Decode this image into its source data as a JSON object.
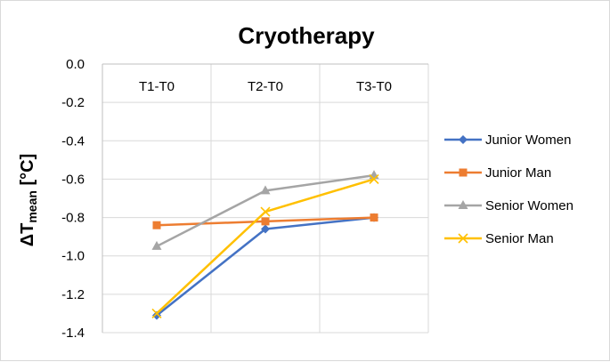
{
  "chart_data": {
    "type": "line",
    "title": "Cryotherapy",
    "ylabel": {
      "prefix": "ΔT",
      "sub": "mean",
      "suffix": " [°C]"
    },
    "xlabel": "",
    "categories": [
      "T1-T0",
      "T2-T0",
      "T3-T0"
    ],
    "ylim": [
      -1.4,
      0.0
    ],
    "yticks": [
      0.0,
      -0.2,
      -0.4,
      -0.6,
      -0.8,
      -1.0,
      -1.2,
      -1.4
    ],
    "ytick_labels": [
      "0.0",
      "-0.2",
      "-0.4",
      "-0.6",
      "-0.8",
      "-1.0",
      "-1.2",
      "-1.4"
    ],
    "grid": true,
    "legend_position": "right",
    "series": [
      {
        "name": "Junior Women",
        "color": "#4472c4",
        "marker": "diamond",
        "values": [
          -1.31,
          -0.86,
          -0.8
        ]
      },
      {
        "name": "Junior Man",
        "color": "#ed7d31",
        "marker": "square",
        "values": [
          -0.84,
          -0.82,
          -0.8
        ]
      },
      {
        "name": "Senior Women",
        "color": "#a5a5a5",
        "marker": "triangle",
        "values": [
          -0.95,
          -0.66,
          -0.58
        ]
      },
      {
        "name": "Senior Man",
        "color": "#ffc000",
        "marker": "x",
        "values": [
          -1.3,
          -0.77,
          -0.6
        ]
      }
    ]
  }
}
